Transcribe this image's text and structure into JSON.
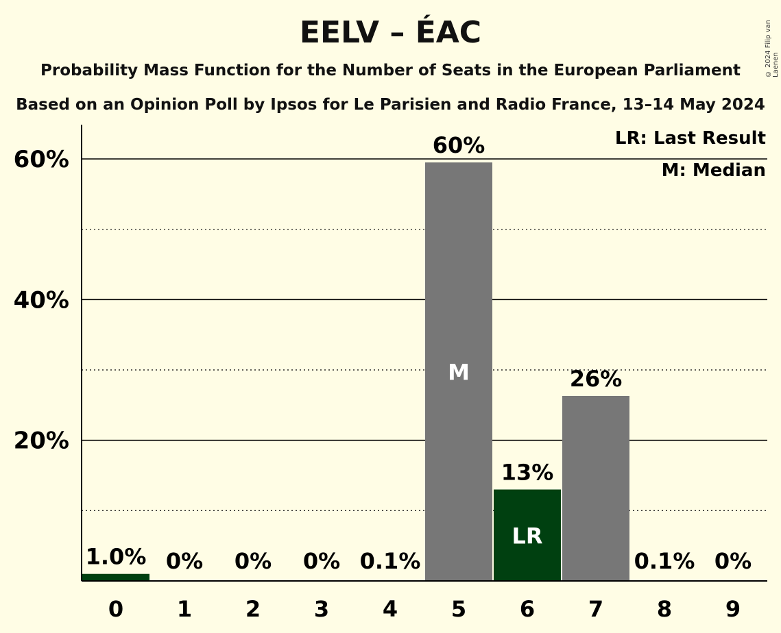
{
  "title": "EELV – ÉAC",
  "subtitle1": "Probability Mass Function for the Number of Seats in the European Parliament",
  "subtitle2": "Based on an Opinion Poll by Ipsos for Le Parisien and Radio France, 13–14 May 2024",
  "copyright": "© 2024 Filip van Laenen",
  "legend": {
    "last_result": "LR: Last Result",
    "median": "M: Median"
  },
  "colors": {
    "background": "#fffde5",
    "gray_bar": "#777777",
    "green_bar": "#004010",
    "axis": "#000000"
  },
  "chart_data": {
    "type": "bar",
    "categories": [
      "0",
      "1",
      "2",
      "3",
      "4",
      "5",
      "6",
      "7",
      "8",
      "9"
    ],
    "values": [
      1.0,
      0,
      0,
      0,
      0.1,
      59.5,
      13.0,
      26.3,
      0.1,
      0
    ],
    "labels": [
      "1.0%",
      "0%",
      "0%",
      "0%",
      "0.1%",
      "60%",
      "13%",
      "26%",
      "0.1%",
      "0%"
    ],
    "bar_colors": [
      "green",
      "gray",
      "gray",
      "gray",
      "gray",
      "gray",
      "green",
      "gray",
      "gray",
      "gray"
    ],
    "median_category": "5",
    "median_marker": "M",
    "last_result_category": "6",
    "last_result_marker": "LR",
    "ylim": [
      0,
      65
    ],
    "y_ticks": [
      20,
      40,
      60
    ],
    "y_tick_labels": [
      "20%",
      "40%",
      "60%"
    ],
    "y_minor_gridlines": [
      10,
      30,
      50
    ],
    "grid": true,
    "legend_position": "top-right"
  }
}
